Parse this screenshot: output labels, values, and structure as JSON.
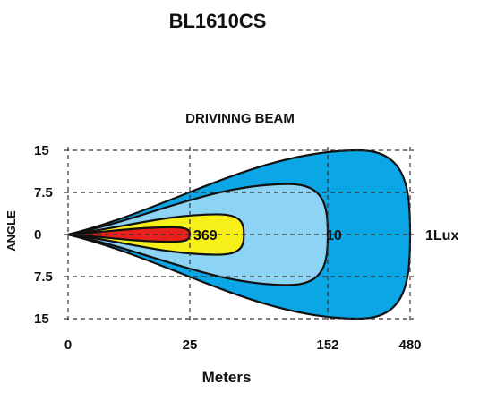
{
  "chart_data": {
    "type": "area",
    "title": "BL1610CS",
    "subtitle": "DRIVINNG  BEAM",
    "xlabel": "Meters",
    "ylabel": "ANGLE",
    "x_ticks": [
      "0",
      "25",
      "152",
      "480"
    ],
    "y_ticks": [
      "15",
      "7.5",
      "0",
      "7.5",
      "15"
    ],
    "y_tick_values": [
      15,
      7.5,
      0,
      -7.5,
      -15
    ],
    "grid": true,
    "series": [
      {
        "name": "1Lux",
        "color": "#0aa6e6",
        "reach": 480,
        "half_angle": 15
      },
      {
        "name": "10",
        "color": "#8dd4f4",
        "reach": 152,
        "half_angle": 9
      },
      {
        "name": "369",
        "color": "#f6ef1a",
        "reach": 50,
        "half_angle": 3.6
      },
      {
        "name": "",
        "color": "#e8211d",
        "reach": 25,
        "half_angle": 1.3
      }
    ]
  }
}
